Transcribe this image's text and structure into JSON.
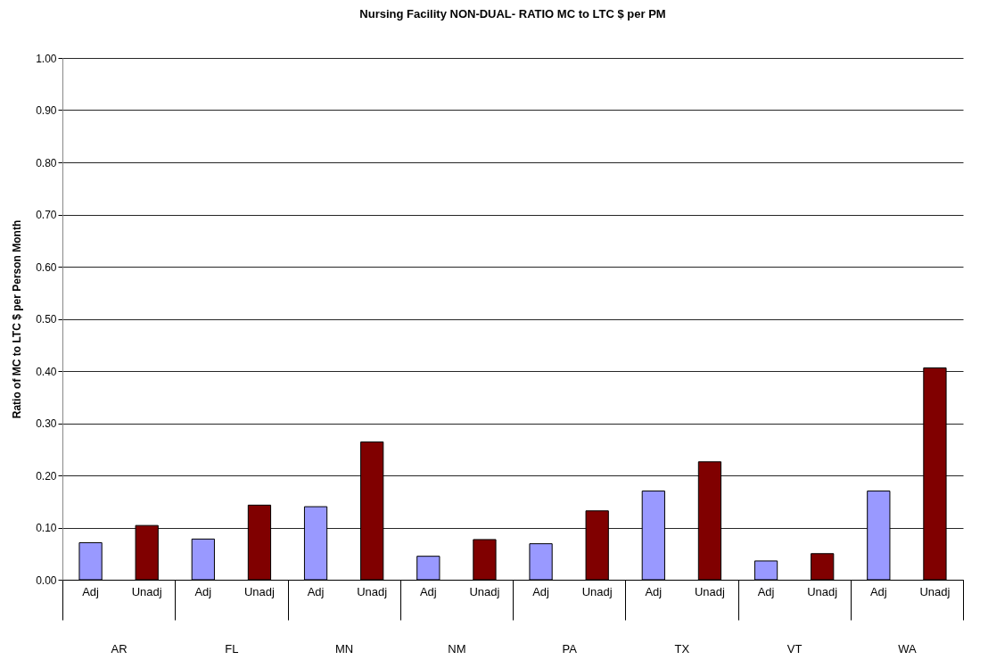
{
  "chart_data": {
    "type": "bar",
    "title": "Nursing Facility  NON-DUAL- RATIO MC to LTC $ per PM",
    "ylabel": "Ratio of MC to LTC $ per Person Month",
    "categories": [
      "AR",
      "FL",
      "MN",
      "NM",
      "PA",
      "TX",
      "VT",
      "WA"
    ],
    "series": [
      {
        "name": "Adj",
        "color": "#9999ff",
        "values": [
          0.071,
          0.078,
          0.14,
          0.045,
          0.069,
          0.17,
          0.036,
          0.17
        ]
      },
      {
        "name": "Unadj",
        "color": "#800000",
        "values": [
          0.104,
          0.143,
          0.264,
          0.077,
          0.132,
          0.226,
          0.05,
          0.406
        ]
      }
    ],
    "ylim": [
      0,
      1
    ],
    "yticks": [
      {
        "value": 0,
        "label": "0.00"
      },
      {
        "value": 0.1,
        "label": "0.10"
      },
      {
        "value": 0.2,
        "label": "0.20"
      },
      {
        "value": 0.3,
        "label": "0.30"
      },
      {
        "value": 0.4,
        "label": "0.40"
      },
      {
        "value": 0.5,
        "label": "0.50"
      },
      {
        "value": 0.6,
        "label": "0.60"
      },
      {
        "value": 0.7,
        "label": "0.70"
      },
      {
        "value": 0.8,
        "label": "0.80"
      },
      {
        "value": 0.9,
        "label": "0.90"
      },
      {
        "value": 1,
        "label": "1.00"
      }
    ],
    "grid": "y",
    "legend": false
  }
}
